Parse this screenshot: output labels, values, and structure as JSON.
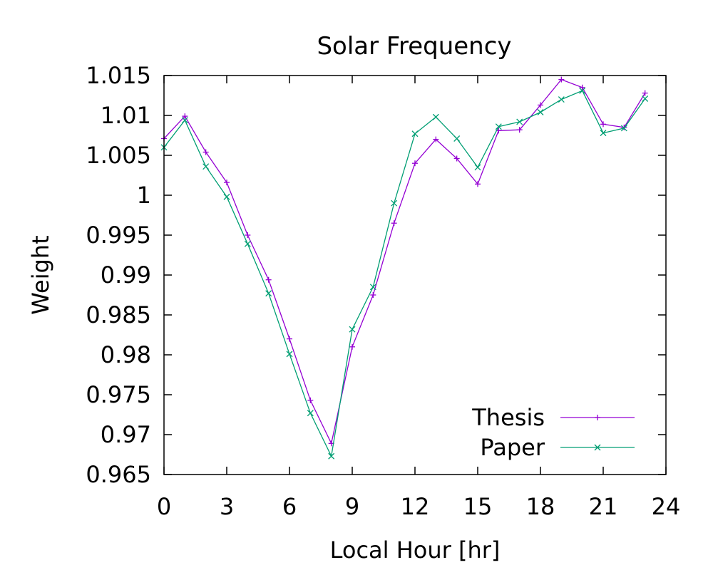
{
  "chart_data": {
    "type": "line",
    "title": "Solar Frequency",
    "xlabel": "Local Hour [hr]",
    "ylabel": "Weight",
    "xlim": [
      0,
      24
    ],
    "ylim": [
      0.965,
      1.015
    ],
    "xticks": [
      0,
      3,
      6,
      9,
      12,
      15,
      18,
      21,
      24
    ],
    "xtick_labels": [
      "0",
      "3",
      "6",
      "9",
      "12",
      "15",
      "18",
      "21",
      "24"
    ],
    "yticks": [
      0.965,
      0.97,
      0.975,
      0.98,
      0.985,
      0.99,
      0.995,
      1.0,
      1.005,
      1.01,
      1.015
    ],
    "ytick_labels": [
      "0.965",
      "0.97",
      "0.975",
      "0.98",
      "0.985",
      "0.99",
      "0.995",
      "1",
      "1.005",
      "1.01",
      "1.015"
    ],
    "grid": false,
    "legend_position": "bottom-right",
    "x": [
      0,
      1,
      2,
      3,
      4,
      5,
      6,
      7,
      8,
      9,
      10,
      11,
      12,
      13,
      14,
      15,
      16,
      17,
      18,
      19,
      20,
      21,
      22,
      23
    ],
    "series": [
      {
        "name": "Thesis",
        "color": "#9400d3",
        "marker": "plus",
        "values": [
          1.0071,
          1.0099,
          1.0054,
          1.0016,
          0.995,
          0.9894,
          0.982,
          0.9743,
          0.9689,
          0.981,
          0.9875,
          0.9965,
          1.004,
          1.007,
          1.0046,
          1.0014,
          1.0081,
          1.0082,
          1.0113,
          1.0145,
          1.0135,
          1.0089,
          1.0085,
          1.0128
        ]
      },
      {
        "name": "Paper",
        "color": "#009e73",
        "marker": "cross",
        "values": [
          1.006,
          1.0094,
          1.0036,
          0.9998,
          0.9939,
          0.9877,
          0.9801,
          0.9727,
          0.9673,
          0.9832,
          0.9885,
          0.999,
          1.0077,
          1.0098,
          1.0071,
          1.0035,
          1.0086,
          1.0092,
          1.0104,
          1.012,
          1.0131,
          1.0078,
          1.0084,
          1.0121
        ]
      }
    ]
  }
}
